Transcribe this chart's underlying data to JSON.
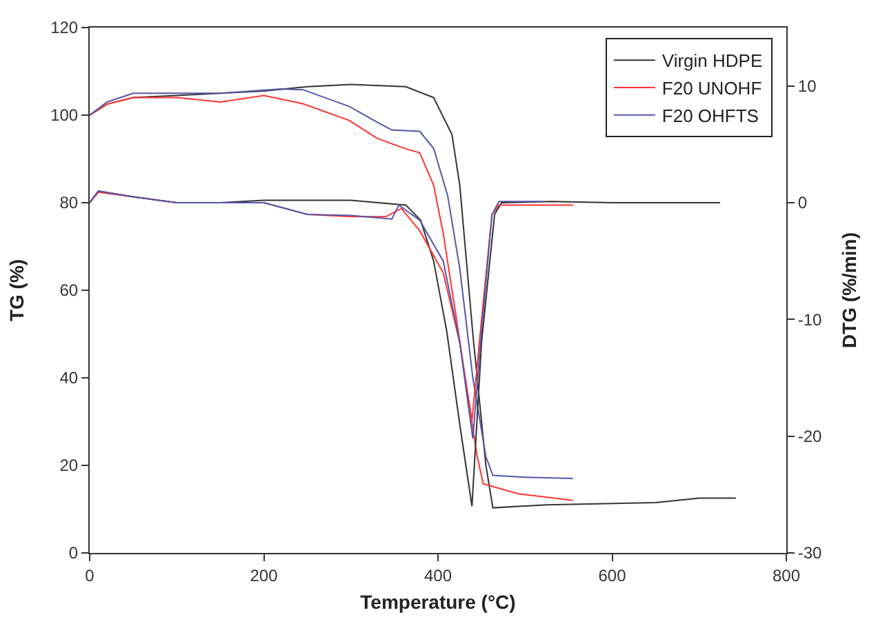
{
  "chart_data": {
    "type": "line",
    "xlabel": "Temperature (°C)",
    "ylabel": "TG (%)",
    "y2label": "DTG (%/min)",
    "xlim": [
      0,
      800
    ],
    "xticks": [
      0,
      200,
      400,
      600,
      800
    ],
    "ylim": [
      0,
      120
    ],
    "yticks": [
      0,
      20,
      40,
      60,
      80,
      100,
      120
    ],
    "y2lim": [
      -30,
      15
    ],
    "y2ticks": [
      -30,
      -20,
      -10,
      0,
      10
    ],
    "legend": "top right",
    "marker": "none",
    "line_style": "solid",
    "series": [
      {
        "name": "Virgin HDPE",
        "color": "#333333",
        "x": [
          0,
          20,
          50,
          100,
          150,
          200,
          250,
          300,
          363,
          395,
          416,
          425,
          440,
          455,
          463,
          525,
          650,
          700,
          742
        ],
        "values": [
          100,
          102.5,
          104,
          104.5,
          105,
          105.5,
          106.5,
          107,
          106.5,
          104,
          95.6,
          84,
          50,
          20,
          10.3,
          11,
          11.5,
          12.5,
          12.5
        ]
      },
      {
        "name": "F20 UNOHF",
        "color": "#ff3333",
        "x": [
          0,
          20,
          50,
          100,
          150,
          200,
          245,
          298,
          330,
          363,
          379,
          395,
          406,
          420,
          435,
          445,
          452,
          492,
          555
        ],
        "values": [
          100,
          102.5,
          104,
          104,
          103,
          104.5,
          102.6,
          98.8,
          94.7,
          92.3,
          91.4,
          84,
          73,
          55,
          35,
          22,
          15.8,
          13.5,
          12
        ]
      },
      {
        "name": "F20 OHFTS",
        "color": "#5555aa",
        "x": [
          0,
          20,
          50,
          100,
          150,
          220,
          245,
          298,
          330,
          347,
          379,
          395,
          411,
          425,
          440,
          455,
          463,
          500,
          555
        ],
        "values": [
          100,
          103,
          105,
          105,
          105,
          106,
          105.8,
          102,
          98.4,
          96.6,
          96.3,
          92.4,
          81.7,
          65,
          40,
          22,
          17.7,
          17.3,
          17
        ]
      },
      {
        "color": "#333333",
        "axis": "y2",
        "x": [
          0,
          10,
          50,
          100,
          150,
          200,
          300,
          363,
          380,
          395,
          410,
          425,
          439,
          450,
          465,
          473,
          530,
          600,
          724
        ],
        "values": [
          0,
          1,
          0.5,
          0,
          0,
          0.2,
          0.2,
          -0.2,
          -1.5,
          -5,
          -11,
          -19,
          -26,
          -12,
          -1,
          0,
          0.1,
          0,
          0
        ]
      },
      {
        "color": "#ff3333",
        "axis": "y2",
        "x": [
          0,
          10,
          50,
          100,
          150,
          200,
          250,
          300,
          340,
          358,
          379,
          406,
          425,
          439,
          450,
          462,
          470,
          500,
          555
        ],
        "values": [
          0,
          0.9,
          0.5,
          0,
          0,
          0,
          -1,
          -1.2,
          -1.2,
          -0.5,
          -2.4,
          -6,
          -12,
          -18.7,
          -10,
          -1,
          -0.2,
          -0.2,
          -0.2
        ]
      },
      {
        "color": "#5555aa",
        "axis": "y2",
        "x": [
          0,
          10,
          50,
          100,
          150,
          200,
          250,
          300,
          347,
          355,
          379,
          406,
          425,
          440,
          450,
          462,
          470,
          500,
          520
        ],
        "values": [
          0,
          1,
          0.5,
          0,
          0,
          0,
          -1,
          -1.1,
          -1.4,
          -0.2,
          -1.5,
          -5,
          -12,
          -20.2,
          -11,
          -1,
          0.1,
          0.1,
          0.1
        ]
      }
    ]
  }
}
